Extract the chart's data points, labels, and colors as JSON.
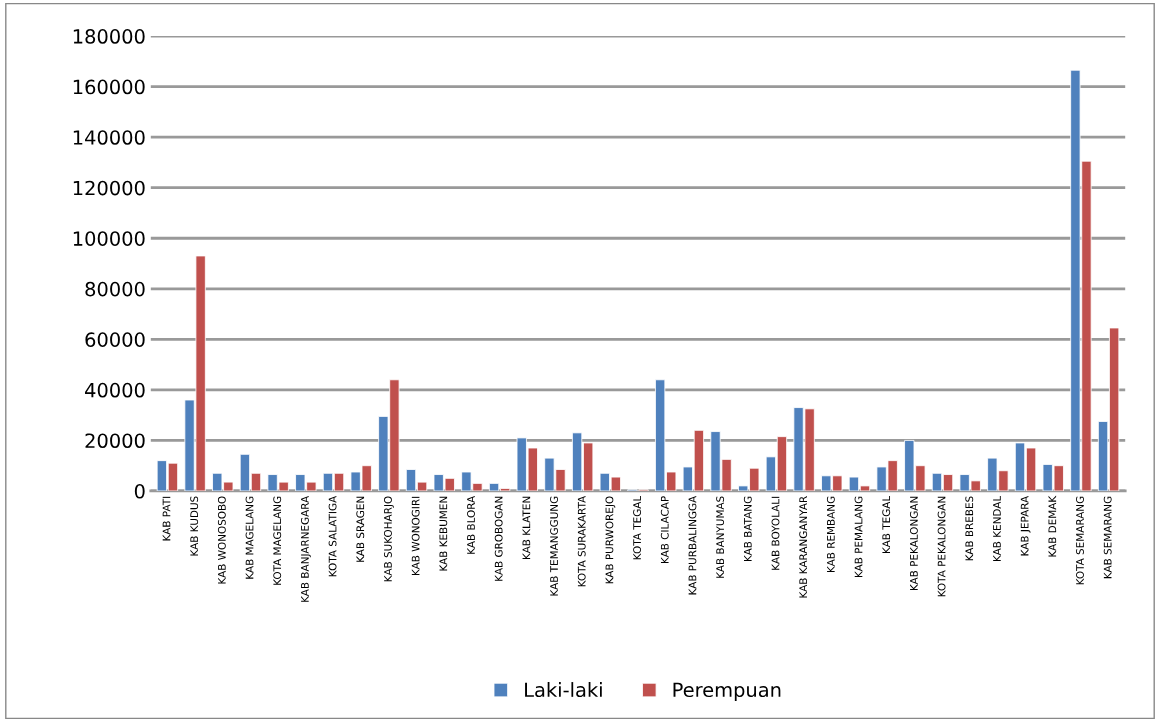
{
  "chart_data": {
    "type": "bar",
    "categories": [
      "KAB PATI",
      "KAB KUDUS",
      "KAB WONOSOBO",
      "KAB MAGELANG",
      "KOTA MAGELANG",
      "KAB BANJARNEGARA",
      "KOTA SALATIGA",
      "KAB SRAGEN",
      "KAB SUKOHARJO",
      "KAB WONOGIRI",
      "KAB KEBUMEN",
      "KAB BLORA",
      "KAB GROBOGAN",
      "KAB KLATEN",
      "KAB TEMANGGUNG",
      "KOTA SURAKARTA",
      "KAB PURWOREJO",
      "KOTA TEGAL",
      "KAB CILACAP",
      "KAB PURBALINGGA",
      "KAB BANYUMAS",
      "KAB BATANG",
      "KAB BOYOLALI",
      "KAB KARANGANYAR",
      "KAB REMBANG",
      "KAB PEMALANG",
      "KAB TEGAL",
      "KAB PEKALONGAN",
      "KOTA PEKALONGAN",
      "KAB BREBES",
      "KAB KENDAL",
      "KAB JEPARA",
      "KAB DEMAK",
      "KOTA SEMARANG",
      "KAB SEMARANG"
    ],
    "series": [
      {
        "name": "Laki-laki",
        "color": "#4f81bd",
        "values": [
          12000,
          36000,
          7000,
          14500,
          6500,
          6500,
          7000,
          7500,
          29500,
          8500,
          6500,
          7500,
          3000,
          21000,
          13000,
          23000,
          7000,
          500,
          44000,
          9500,
          23500,
          2000,
          13500,
          33000,
          6000,
          5500,
          9500,
          20000,
          7000,
          6500,
          13000,
          19000,
          10500,
          166500,
          27500
        ]
      },
      {
        "name": "Perempuan",
        "color": "#c0504d",
        "values": [
          11000,
          93000,
          3500,
          7000,
          3500,
          3500,
          7000,
          10000,
          44000,
          3500,
          5000,
          3000,
          1000,
          17000,
          8500,
          19000,
          5500,
          500,
          7500,
          24000,
          12500,
          9000,
          21500,
          32500,
          6000,
          2000,
          12000,
          10000,
          6500,
          4000,
          8000,
          17000,
          10000,
          130500,
          64500
        ]
      }
    ],
    "ylim": [
      0,
      180000
    ],
    "yticks": [
      0,
      20000,
      40000,
      60000,
      80000,
      100000,
      120000,
      140000,
      160000,
      180000
    ],
    "grid": "y",
    "legend": "bottom"
  }
}
